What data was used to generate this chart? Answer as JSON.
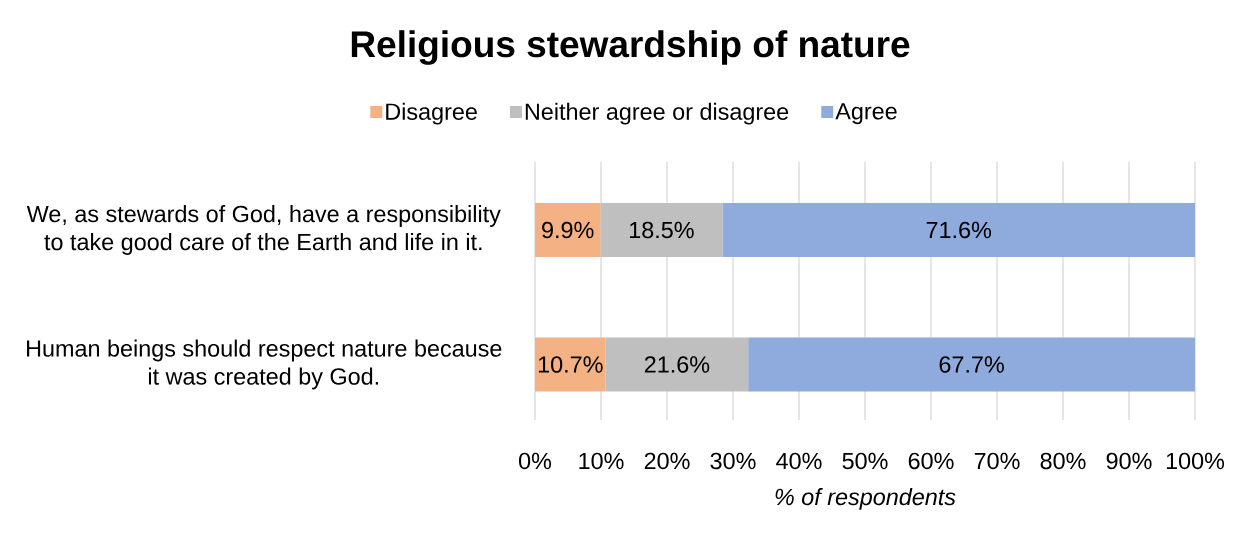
{
  "chart_data": {
    "type": "bar",
    "orientation": "horizontal",
    "stacked": true,
    "title": "Religious stewardship of nature",
    "xlabel": "% of respondents",
    "categories": [
      "We, as stewards of God, have a responsibility to take good care of the Earth and life in it.",
      "Human beings should respect nature because it was created by God."
    ],
    "series": [
      {
        "name": "Disagree",
        "color": "#f4b183",
        "values": [
          9.9,
          10.7
        ],
        "value_labels": [
          "9.9%",
          "10.7%"
        ]
      },
      {
        "name": "Neither agree or disagree",
        "color": "#bfbfbf",
        "values": [
          18.5,
          21.6
        ],
        "value_labels": [
          "18.5%",
          "21.6%"
        ]
      },
      {
        "name": "Agree",
        "color": "#8faadc",
        "values": [
          71.6,
          67.7
        ],
        "value_labels": [
          "71.6%",
          "67.7%"
        ]
      }
    ],
    "xlim": [
      0,
      100
    ],
    "xticks": [
      {
        "value": 0,
        "label": "0%"
      },
      {
        "value": 10,
        "label": "10%"
      },
      {
        "value": 20,
        "label": "20%"
      },
      {
        "value": 30,
        "label": "30%"
      },
      {
        "value": 40,
        "label": "40%"
      },
      {
        "value": 50,
        "label": "50%"
      },
      {
        "value": 60,
        "label": "60%"
      },
      {
        "value": 70,
        "label": "70%"
      },
      {
        "value": 80,
        "label": "80%"
      },
      {
        "value": 90,
        "label": "90%"
      },
      {
        "value": 100,
        "label": "100%"
      }
    ],
    "grid": "x",
    "legend": "top"
  }
}
